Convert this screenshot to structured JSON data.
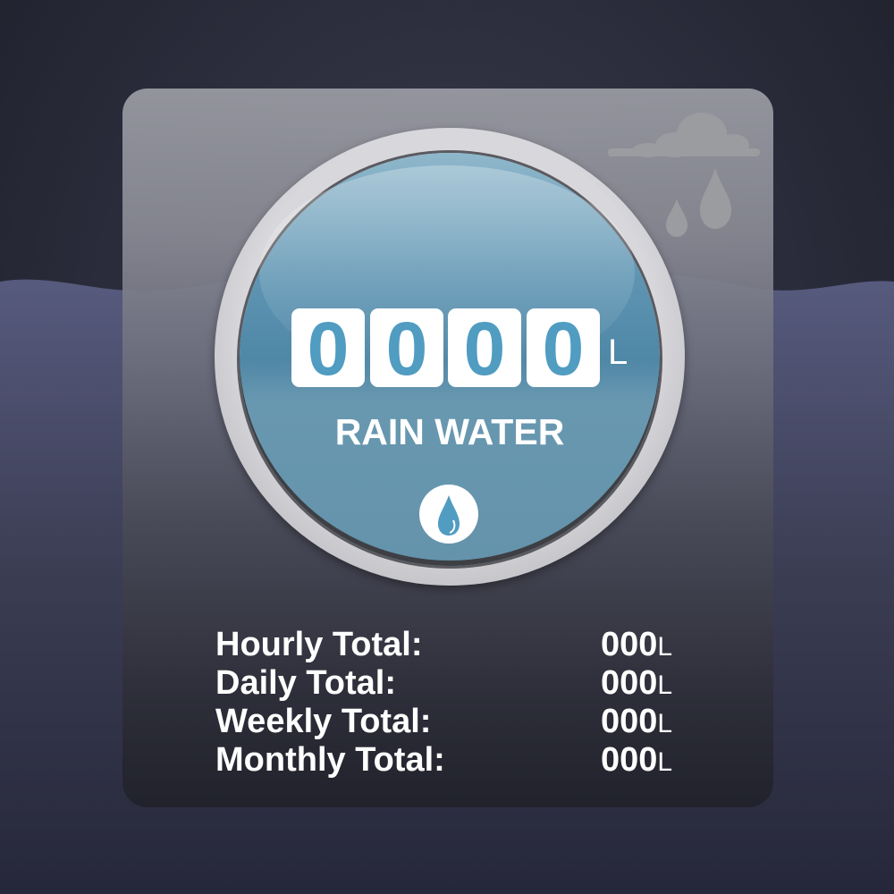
{
  "meter": {
    "digits": [
      "0",
      "0",
      "0",
      "0"
    ],
    "unit": "L",
    "label": "RAIN WATER"
  },
  "totals": [
    {
      "label": "Hourly Total:",
      "value": "000",
      "unit": "L"
    },
    {
      "label": "Daily Total:",
      "value": "000",
      "unit": "L"
    },
    {
      "label": "Weekly Total:",
      "value": "000",
      "unit": "L"
    },
    {
      "label": "Monthly Total:",
      "value": "000",
      "unit": "L"
    }
  ],
  "icons": {
    "weather": "cloud-rain-icon",
    "badge": "water-drop-icon"
  },
  "colors": {
    "accent": "#519cc1",
    "background": "#2a2c3b"
  }
}
